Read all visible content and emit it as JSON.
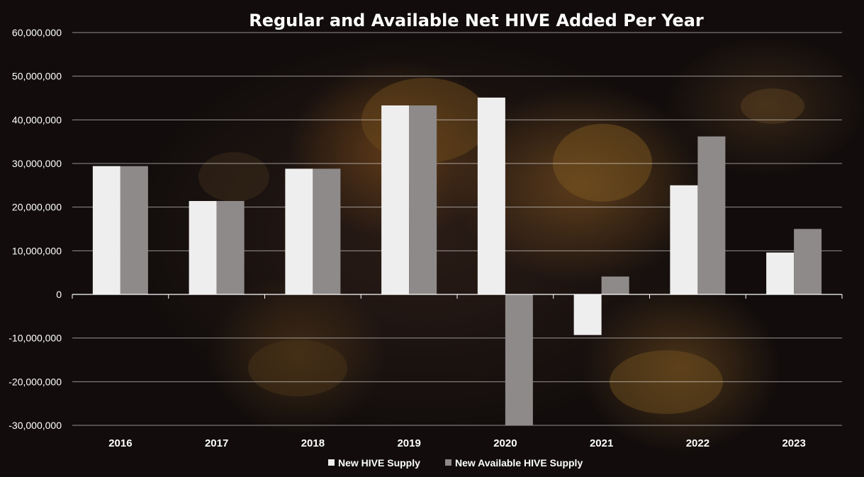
{
  "chart_data": {
    "type": "bar",
    "title": "Regular and Available Net HIVE  Added Per Year",
    "categories": [
      "2016",
      "2017",
      "2018",
      "2019",
      "2020",
      "2021",
      "2022",
      "2023"
    ],
    "series": [
      {
        "name": "New HIVE Supply",
        "color": "#efeeee",
        "values": [
          29400000,
          21400000,
          28800000,
          43300000,
          45100000,
          -9300000,
          25000000,
          9600000
        ]
      },
      {
        "name": "New Available HIVE Supply",
        "color": "#8e8a8a",
        "values": [
          29400000,
          21400000,
          28800000,
          43300000,
          -30000000,
          4100000,
          36200000,
          15000000
        ]
      }
    ],
    "yticks": [
      "60,000,000",
      "50,000,000",
      "40,000,000",
      "30,000,000",
      "20,000,000",
      "10,000,000",
      "0",
      "-10,000,000",
      "-20,000,000",
      "-30,000,000"
    ],
    "ylim": [
      -30000000,
      60000000
    ],
    "grid": true,
    "legend": "bottom"
  }
}
